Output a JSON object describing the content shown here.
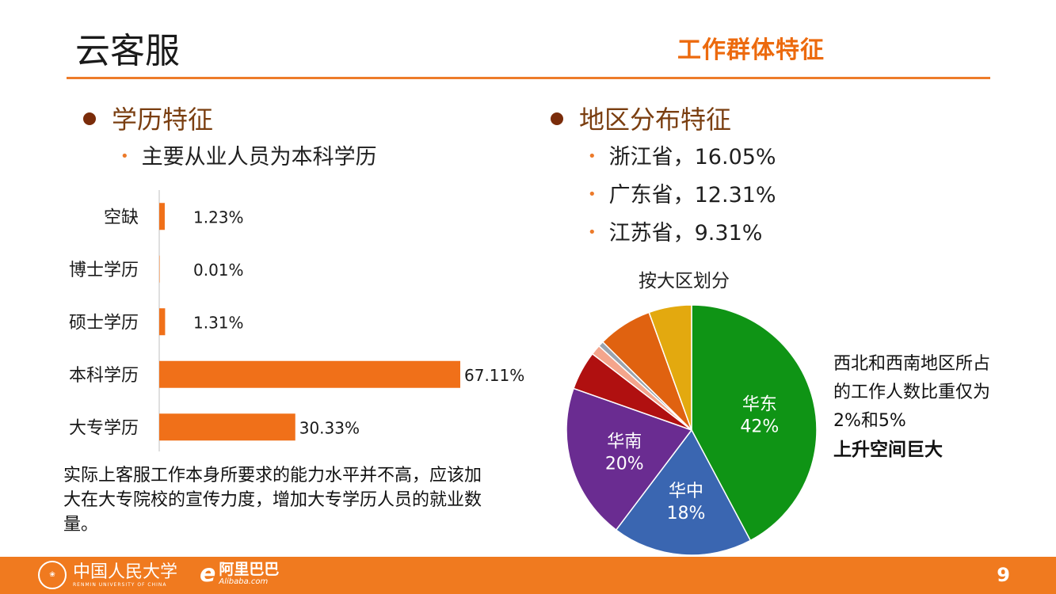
{
  "header": {
    "title": "云客服",
    "section": "工作群体特征"
  },
  "education": {
    "heading": "学历特征",
    "sub": "主要从业人员为本科学历",
    "note": "实际上客服工作本身所要求的能力水平并不高，应该加大在大专院校的宣传力度，增加大专学历人员的就业数量。"
  },
  "region": {
    "heading": "地区分布特征",
    "items": [
      "浙江省，16.05%",
      "广东省，12.31%",
      "江苏省，9.31%"
    ],
    "pie_title": "按大区划分",
    "side_note": "西北和西南地区所占的工作人数比重仅为2%和5%",
    "side_emphasis": "上升空间巨大"
  },
  "chart_data": [
    {
      "type": "bar",
      "orientation": "horizontal",
      "categories": [
        "空缺",
        "博士学历",
        "硕士学历",
        "本科学历",
        "大专学历"
      ],
      "values": [
        1.23,
        0.01,
        1.31,
        67.11,
        30.33
      ],
      "data_labels": [
        "1.23%",
        "0.01%",
        "1.31%",
        "67.11%",
        "30.33%"
      ],
      "unit": "%",
      "bar_color": "#f07019",
      "xlim": [
        0,
        100
      ],
      "title": "",
      "xlabel": "",
      "ylabel": ""
    },
    {
      "type": "pie",
      "title": "按大区划分",
      "slices": [
        {
          "label": "华东",
          "value": 42,
          "value_label": "42%",
          "color": "#0f9415"
        },
        {
          "label": "华中",
          "value": 18,
          "value_label": "18%",
          "color": "#3a66b1"
        },
        {
          "label": "华南",
          "value": 20,
          "value_label": "20%",
          "color": "#6a2c91"
        },
        {
          "label": "",
          "value": 5,
          "value_label": "",
          "color": "#b01010"
        },
        {
          "label": "",
          "value": 1.3,
          "value_label": "",
          "color": "#f4a58c"
        },
        {
          "label": "",
          "value": 0.7,
          "value_label": "",
          "color": "#9aa3ae"
        },
        {
          "label": "",
          "value": 7,
          "value_label": "",
          "color": "#e06210"
        },
        {
          "label": "",
          "value": 5.5,
          "value_label": "",
          "color": "#e3a90f"
        }
      ]
    }
  ],
  "footer": {
    "university_cn": "中国人民大学",
    "university_en": "RENMIN UNIVERSITY OF CHINA",
    "alibaba_cn": "阿里巴巴",
    "alibaba_en": "Alibaba.com",
    "page_number": "9"
  },
  "colors": {
    "accent": "#ec6a0e",
    "footer": "#f07a1f",
    "heading_brown": "#7a3e10"
  }
}
